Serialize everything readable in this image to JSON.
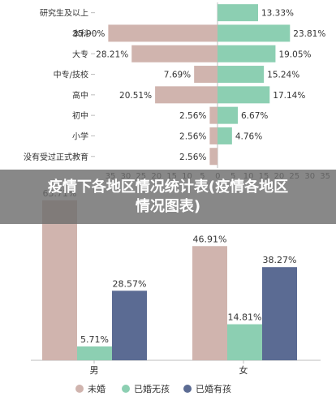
{
  "title": "疫情下各地区情况统计表(疫情各地区情况图表)",
  "colors": {
    "left_bar": "#d0b4ae",
    "right_bar": "#8ccfb2",
    "unmarried": "#d0b4ae",
    "married_no_child": "#8ccfb2",
    "married_child": "#5b6b93",
    "axis": "#bdbdbd",
    "text": "#333333"
  },
  "chart_data": [
    {
      "type": "bar",
      "orientation": "horizontal-diverging",
      "categories": [
        "研究生及以上",
        "本科",
        "大专",
        "中专/技校",
        "高中",
        "初中",
        "小学",
        "没有受过正式教育"
      ],
      "series": [
        {
          "values": [
            null,
            35.9,
            28.21,
            7.69,
            20.51,
            2.56,
            2.56,
            2.56
          ],
          "labels": [
            "",
            "35.90%",
            "28.21%",
            "7.69%",
            "20.51%",
            "2.56%",
            "2.56%",
            "2.56%"
          ]
        },
        {
          "values": [
            13.33,
            23.81,
            19.05,
            15.24,
            17.14,
            6.67,
            4.76,
            null
          ],
          "labels": [
            "13.33%",
            "23.81%",
            "19.05%",
            "15.24%",
            "17.14%",
            "6.67%",
            "4.76%",
            ""
          ]
        }
      ],
      "xlim": [
        -35,
        35
      ],
      "x_ticks": [
        "35",
        "30",
        "25",
        "20",
        "15",
        "10",
        "5",
        "0",
        "5",
        "10",
        "15",
        "20",
        "25",
        "30",
        "35"
      ]
    },
    {
      "type": "bar",
      "categories": [
        "男",
        "女"
      ],
      "series": [
        {
          "name": "未婚",
          "values": [
            65.71,
            46.91
          ],
          "labels": [
            "65.71%",
            "46.91%"
          ]
        },
        {
          "name": "已婚无孩",
          "values": [
            5.71,
            14.81
          ],
          "labels": [
            "5.71%",
            "14.81%"
          ]
        },
        {
          "name": "已婚有孩",
          "values": [
            28.57,
            38.27
          ],
          "labels": [
            "28.57%",
            "38.27%"
          ]
        }
      ],
      "ylim": [
        0,
        70
      ],
      "legend": "bottom"
    }
  ]
}
